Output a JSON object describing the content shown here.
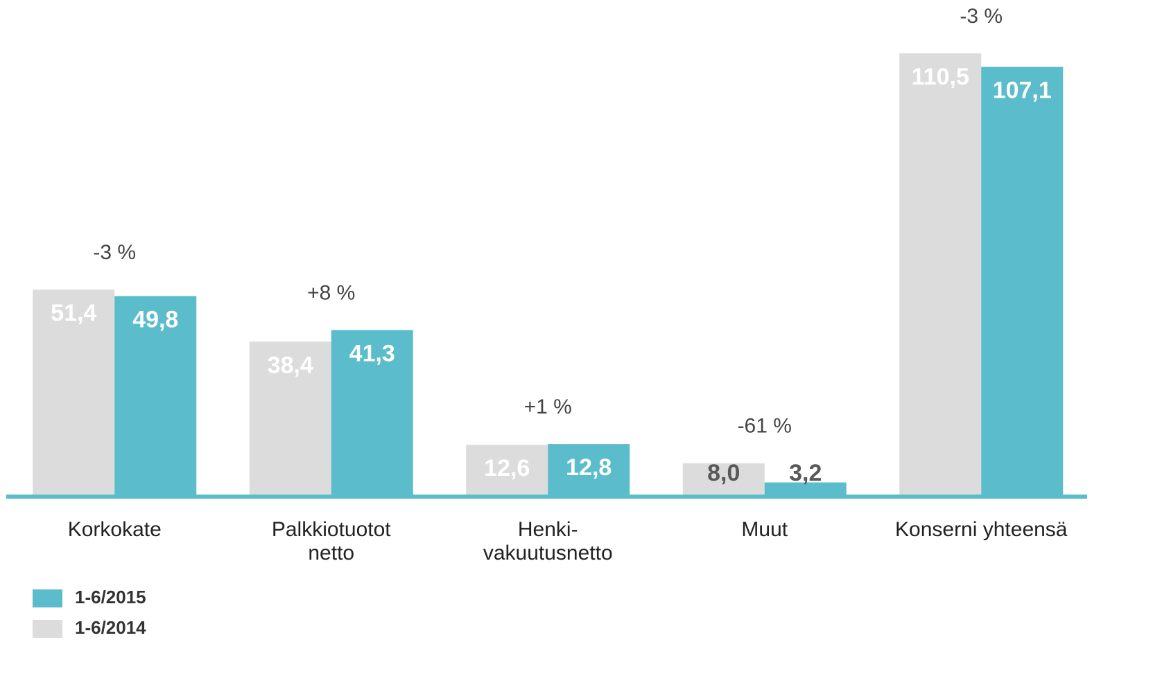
{
  "chart_data": {
    "type": "bar",
    "categories": [
      "Korkokate",
      "Palkkiotuotot\nnetto",
      "Henki-\nvakuutusnetto",
      "Muut",
      "Konserni yhteensä"
    ],
    "series": [
      {
        "name": "1-6/2014",
        "color": "#dcdcdc",
        "values": [
          51.4,
          38.4,
          12.6,
          8.0,
          110.5
        ],
        "value_labels": [
          "51,4",
          "38,4",
          "12,6",
          "8,0",
          "110,5"
        ]
      },
      {
        "name": "1-6/2015",
        "color": "#5bbccb",
        "values": [
          49.8,
          41.3,
          12.8,
          3.2,
          107.1
        ],
        "value_labels": [
          "49,8",
          "41,3",
          "12,8",
          "3,2",
          "107,1"
        ]
      }
    ],
    "annotations": [
      "-3 %",
      "+8 %",
      "+1 %",
      "-61 %",
      "-3 %"
    ]
  }
}
